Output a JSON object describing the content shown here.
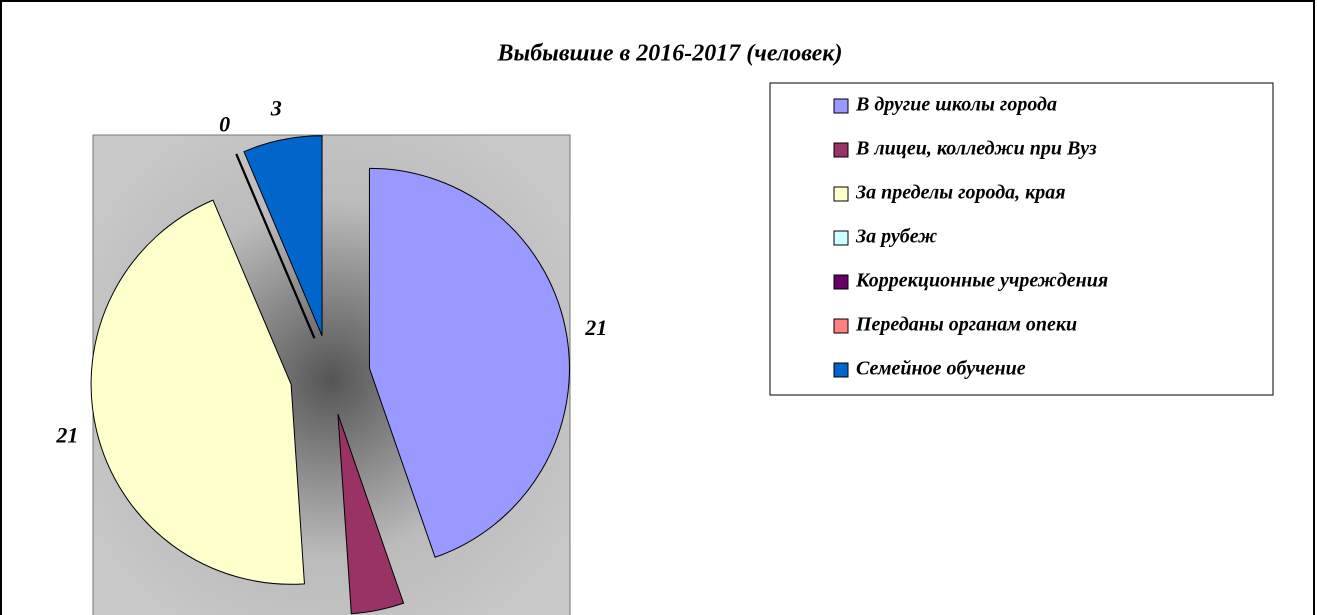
{
  "chart_data": {
    "type": "pie",
    "title": "Выбывшие в 2016-2017 (человек)",
    "categories": [
      "В другие школы города",
      "В лицеи, колледжи при Вуз",
      "За пределы города, края",
      "За рубеж",
      "Коррекционные учреждения",
      "Переданы органам опеки",
      "Семейное обучение"
    ],
    "values": [
      21,
      2,
      21,
      0,
      0,
      0,
      3
    ],
    "value_labels": [
      "21",
      null,
      "21",
      "0",
      null,
      null,
      "3"
    ],
    "colors": [
      "#9999ff",
      "#993366",
      "#ffffcc",
      "#ccffff",
      "#660066",
      "#ff8080",
      "#0066cc"
    ],
    "legend": "right"
  }
}
